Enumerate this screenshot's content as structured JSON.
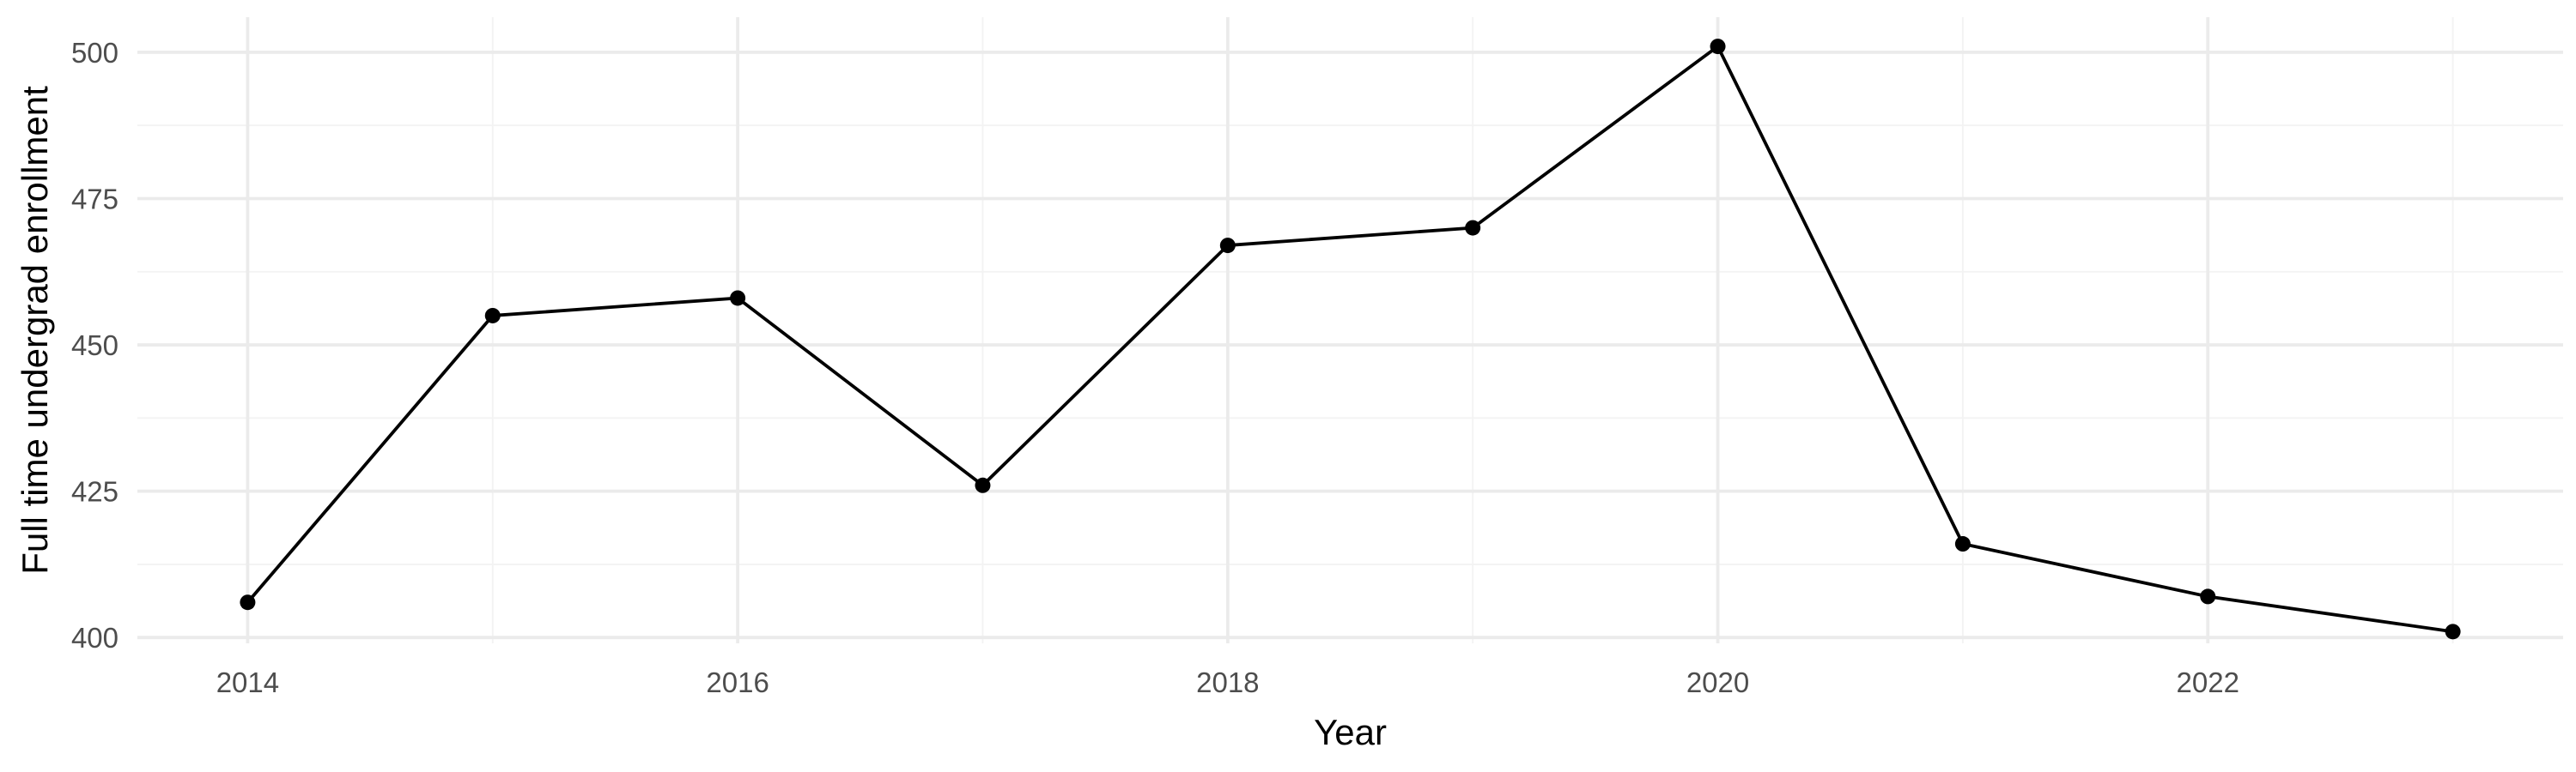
{
  "chart_data": {
    "type": "line",
    "title": "",
    "xlabel": "Year",
    "ylabel": "Full time undergrad enrollment",
    "x": [
      2014,
      2015,
      2016,
      2017,
      2018,
      2019,
      2020,
      2021,
      2022,
      2023
    ],
    "series": [
      {
        "values": [
          406,
          455,
          458,
          426,
          467,
          470,
          501,
          416,
          407,
          401
        ]
      }
    ],
    "xlim": [
      2013.55,
      2023.45
    ],
    "ylim": [
      399,
      506
    ],
    "x_ticks": [
      2014,
      2016,
      2018,
      2020,
      2022
    ],
    "x_tick_labels": [
      "2014",
      "2016",
      "2018",
      "2020",
      "2022"
    ],
    "x_minor_ticks": [
      2015,
      2017,
      2019,
      2021,
      2023
    ],
    "y_ticks": [
      400,
      425,
      450,
      475,
      500
    ],
    "y_tick_labels": [
      "400",
      "425",
      "450",
      "475",
      "500"
    ],
    "y_minor_ticks": [
      412.5,
      437.5,
      462.5,
      487.5
    ],
    "grid": true,
    "legend": "none",
    "markers": true,
    "colors": {
      "line": "#000000",
      "grid": "#ebebeb",
      "background": "#ffffff"
    }
  }
}
